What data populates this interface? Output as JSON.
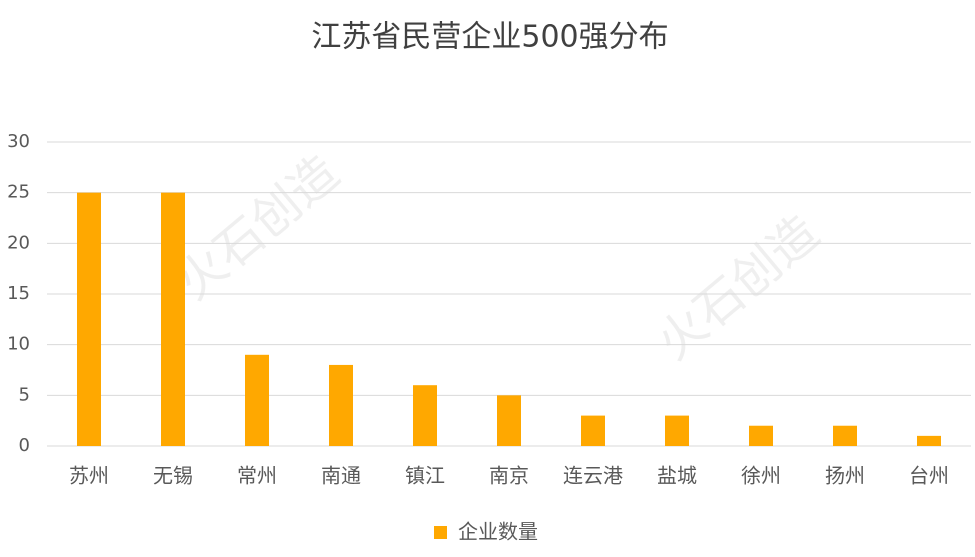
{
  "chart_data": {
    "type": "bar",
    "title": "江苏省民营企业500强分布",
    "watermark": "火石创造",
    "categories": [
      "苏州",
      "无锡",
      "常州",
      "南通",
      "镇江",
      "南京",
      "连云港",
      "盐城",
      "徐州",
      "扬州",
      "台州"
    ],
    "series": [
      {
        "name": "企业数量",
        "color": "#ffa800",
        "values": [
          25,
          25,
          9,
          8,
          6,
          5,
          3,
          3,
          2,
          2,
          1
        ]
      }
    ],
    "ylim": [
      0,
      30
    ],
    "yticks": [
      0,
      5,
      10,
      15,
      20,
      25,
      30
    ],
    "grid": true,
    "legend": "bottom"
  }
}
